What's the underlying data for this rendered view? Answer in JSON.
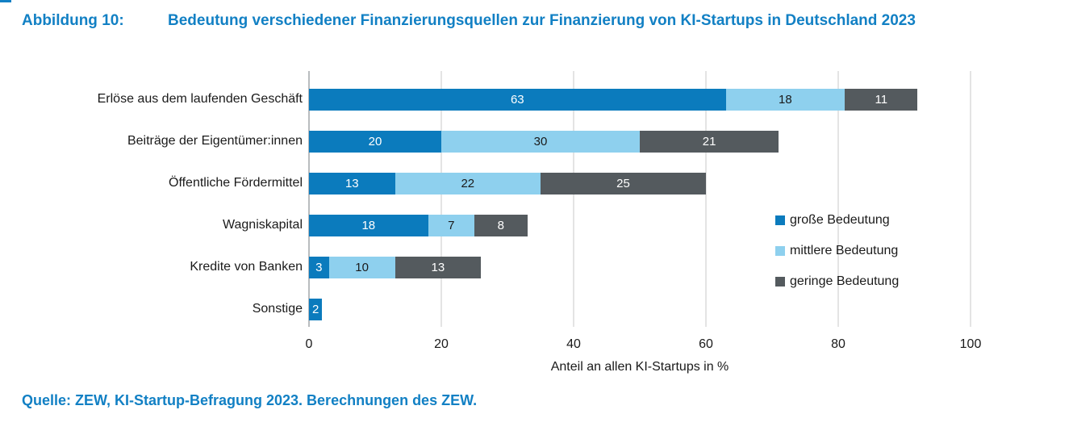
{
  "figure": {
    "label": "Abbildung 10:",
    "title": "Bedeutung verschiedener Finanzierungsquellen zur Finanzierung von KI-Startups in Deutschland 2023",
    "source": "Quelle: ZEW, KI-Startup-Befragung 2023. Berechnungen des ZEW."
  },
  "colors": {
    "title_blue": "#1280c4",
    "grid": "#e4e4e4",
    "grid_zero": "#b9bcbf",
    "text": "#1a1a1a"
  },
  "chart_data": {
    "type": "bar",
    "orientation": "horizontal",
    "stacked": true,
    "title": "Bedeutung verschiedener Finanzierungsquellen zur Finanzierung von KI-Startups in Deutschland 2023",
    "categories": [
      "Erlöse aus dem laufenden Geschäft",
      "Beiträge der Eigentümer:innen",
      "Öffentliche Fördermittel",
      "Wagniskapital",
      "Kredite von Banken",
      "Sonstige"
    ],
    "series": [
      {
        "name": "große Bedeutung",
        "color": "#0b7bbd",
        "label_color": "#ffffff",
        "values": [
          63,
          20,
          13,
          18,
          3,
          2
        ]
      },
      {
        "name": "mittlere Bedeutung",
        "color": "#8ed0ee",
        "label_color": "#1a1a1a",
        "values": [
          18,
          30,
          22,
          7,
          10,
          0
        ]
      },
      {
        "name": "geringe Bedeutung",
        "color": "#545a5e",
        "label_color": "#ffffff",
        "values": [
          11,
          21,
          25,
          8,
          13,
          0
        ]
      }
    ],
    "xlabel": "Anteil an allen KI-Startups in %",
    "xticks": [
      0,
      20,
      40,
      60,
      80,
      100
    ],
    "xlim": [
      0,
      100
    ],
    "grid": true,
    "legend_position": "right"
  }
}
